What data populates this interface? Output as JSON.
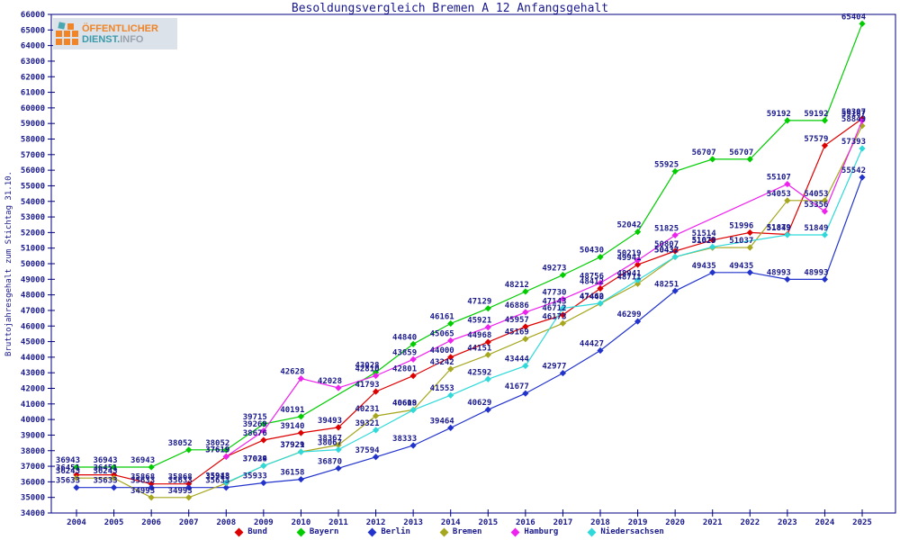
{
  "header": {
    "title": "Besoldungsvergleich Bremen A 12 Anfangsgehalt"
  },
  "logo": {
    "line1": "ÖFFENTLICHER",
    "line2a": "DIENST.",
    "line2b": "INFO"
  },
  "chart_data": {
    "type": "line",
    "title": "Besoldungsvergleich Bremen A 12 Anfangsgehalt",
    "xlabel": "",
    "ylabel": "Bruttojahresgehalt zum Stichtag 31.10.",
    "ylim": [
      34000,
      66000
    ],
    "ytick_step": 1000,
    "grid": false,
    "legend_position": "bottom",
    "categories": [
      "2004",
      "2005",
      "2006",
      "2007",
      "2008",
      "2009",
      "2010",
      "2011",
      "2012",
      "2013",
      "2014",
      "2015",
      "2016",
      "2017",
      "2018",
      "2019",
      "2020",
      "2021",
      "2022",
      "2023",
      "2024",
      "2025"
    ],
    "series": [
      {
        "name": "Bund",
        "color": "#dd0000",
        "values": [
          36451,
          36451,
          35868,
          35868,
          37619,
          38676,
          39140,
          39493,
          41793,
          42801,
          44000,
          44968,
          45957,
          46712,
          48412,
          49941,
          50807,
          51514,
          51996,
          51879,
          57579,
          59307
        ]
      },
      {
        "name": "Bayern",
        "color": "#00cc00",
        "values": [
          36943,
          36943,
          36943,
          38052,
          38052,
          39715,
          40191,
          null,
          43028,
          44840,
          46161,
          47129,
          48212,
          49273,
          50430,
          52042,
          55925,
          56707,
          56707,
          59192,
          59192,
          65404
        ]
      },
      {
        "name": "Berlin",
        "color": "#2233cc",
        "values": [
          35633,
          35633,
          35633,
          35633,
          35633,
          35933,
          36158,
          36870,
          37594,
          38333,
          39464,
          40629,
          41677,
          42977,
          44427,
          46299,
          48251,
          49435,
          49435,
          48993,
          48993,
          55542
        ]
      },
      {
        "name": "Bremen",
        "color": "#a6a61f",
        "values": [
          36243,
          36243,
          34993,
          34993,
          35913,
          37034,
          37929,
          38367,
          40231,
          40619,
          43242,
          44151,
          45169,
          46173,
          47440,
          48711,
          50432,
          51029,
          51037,
          54053,
          54053,
          58849
        ]
      },
      {
        "name": "Hamburg",
        "color": "#ee22ee",
        "values": [
          null,
          null,
          null,
          null,
          37619,
          39269,
          42628,
          42028,
          42810,
          43859,
          45065,
          45921,
          46886,
          47730,
          48756,
          50219,
          51825,
          null,
          null,
          55107,
          53356,
          59187
        ]
      },
      {
        "name": "Niedersachsen",
        "color": "#2fd9d9",
        "values": [
          null,
          null,
          null,
          null,
          35948,
          37029,
          37921,
          38067,
          39321,
          40608,
          41553,
          42592,
          43444,
          47143,
          47462,
          48941,
          50437,
          51079,
          null,
          51849,
          51849,
          57393
        ]
      }
    ]
  }
}
